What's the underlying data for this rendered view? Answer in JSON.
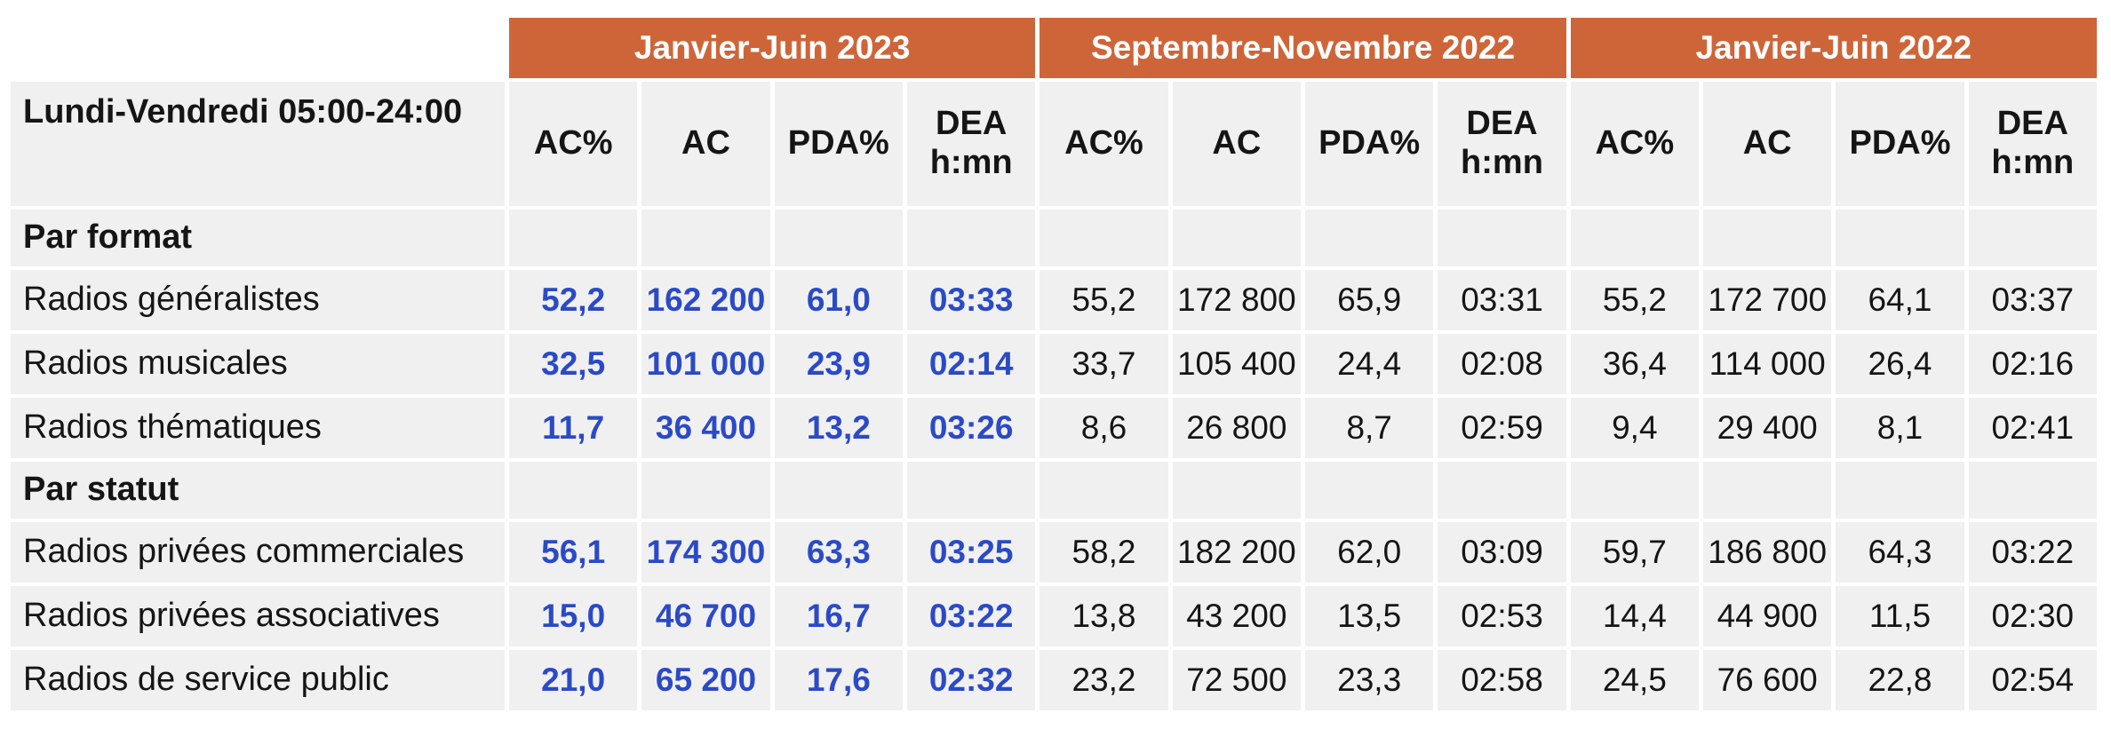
{
  "colors": {
    "period_header_bg": "#CE6539",
    "period_header_text": "#FFFFFF",
    "cell_bg": "#F0F0F0",
    "accent_blue": "#2B4AC7",
    "text": "#151515",
    "page_bg": "#FFFFFF"
  },
  "chart_data": {
    "type": "table",
    "row_title": "Lundi-Vendredi 05:00-24:00",
    "column_groups": [
      "Janvier-Juin 2023",
      "Septembre-Novembre 2022",
      "Janvier-Juin 2022"
    ],
    "metric_columns": [
      "AC%",
      "AC",
      "PDA%",
      "DEA h:mn"
    ],
    "highlighted_group_index": 0,
    "sections": [
      {
        "label": "Par format",
        "rows": [
          {
            "label": "Radios généralistes",
            "values": [
              "52,2",
              "162 200",
              "61,0",
              "03:33",
              "55,2",
              "172 800",
              "65,9",
              "03:31",
              "55,2",
              "172 700",
              "64,1",
              "03:37"
            ]
          },
          {
            "label": "Radios musicales",
            "values": [
              "32,5",
              "101 000",
              "23,9",
              "02:14",
              "33,7",
              "105 400",
              "24,4",
              "02:08",
              "36,4",
              "114 000",
              "26,4",
              "02:16"
            ]
          },
          {
            "label": "Radios thématiques",
            "values": [
              "11,7",
              "36 400",
              "13,2",
              "03:26",
              "8,6",
              "26 800",
              "8,7",
              "02:59",
              "9,4",
              "29 400",
              "8,1",
              "02:41"
            ]
          }
        ]
      },
      {
        "label": "Par statut",
        "rows": [
          {
            "label": "Radios privées commerciales",
            "values": [
              "56,1",
              "174 300",
              "63,3",
              "03:25",
              "58,2",
              "182 200",
              "62,0",
              "03:09",
              "59,7",
              "186 800",
              "64,3",
              "03:22"
            ]
          },
          {
            "label": "Radios privées associatives",
            "values": [
              "15,0",
              "46 700",
              "16,7",
              "03:22",
              "13,8",
              "43 200",
              "13,5",
              "02:53",
              "14,4",
              "44 900",
              "11,5",
              "02:30"
            ]
          },
          {
            "label": "Radios de service public",
            "values": [
              "21,0",
              "65 200",
              "17,6",
              "02:32",
              "23,2",
              "72 500",
              "23,3",
              "02:58",
              "24,5",
              "76 600",
              "22,8",
              "02:54"
            ]
          }
        ]
      }
    ]
  }
}
